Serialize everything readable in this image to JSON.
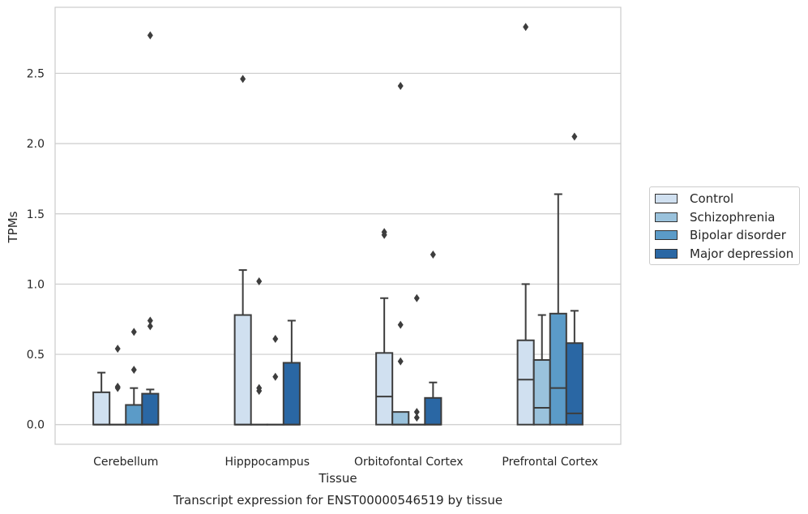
{
  "chart_data": {
    "type": "boxplot",
    "xlabel": "Tissue",
    "ylabel": "TPMs",
    "caption": "Transcript expression for ENST00000546519 by tissue",
    "ylim": [
      -0.14,
      2.97
    ],
    "yticks": [
      0.0,
      0.5,
      1.0,
      1.5,
      2.0,
      2.5
    ],
    "ytick_labels": [
      "0.0",
      "0.5",
      "1.0",
      "1.5",
      "2.0",
      "2.5"
    ],
    "grid": "horizontal",
    "legend_position": "right",
    "categories": [
      "Cerebellum",
      "Hipppocampus",
      "Orbitofontal Cortex",
      "Prefrontal Cortex"
    ],
    "series": [
      {
        "name": "Control",
        "color": "#d0e0f0",
        "boxes": [
          {
            "q1": 0.0,
            "median": 0.0,
            "q3": 0.23,
            "whisker_low": 0.0,
            "whisker_high": 0.37,
            "outliers": []
          },
          {
            "q1": 0.0,
            "median": 0.0,
            "q3": 0.78,
            "whisker_low": 0.0,
            "whisker_high": 1.1,
            "outliers": [
              2.46
            ]
          },
          {
            "q1": 0.0,
            "median": 0.2,
            "q3": 0.51,
            "whisker_low": 0.0,
            "whisker_high": 0.9,
            "outliers": [
              1.35,
              1.37
            ]
          },
          {
            "q1": 0.0,
            "median": 0.32,
            "q3": 0.6,
            "whisker_low": 0.0,
            "whisker_high": 1.0,
            "outliers": [
              2.83
            ]
          }
        ]
      },
      {
        "name": "Schizophrenia",
        "color": "#9ac2dc",
        "boxes": [
          {
            "q1": 0.0,
            "median": 0.0,
            "q3": 0.0,
            "whisker_low": 0.0,
            "whisker_high": 0.0,
            "outliers": [
              0.26,
              0.27,
              0.54
            ]
          },
          {
            "q1": 0.0,
            "median": 0.0,
            "q3": 0.0,
            "whisker_low": 0.0,
            "whisker_high": 0.0,
            "outliers": [
              0.24,
              0.26,
              1.02
            ]
          },
          {
            "q1": 0.0,
            "median": 0.0,
            "q3": 0.09,
            "whisker_low": 0.0,
            "whisker_high": 0.09,
            "outliers": [
              0.45,
              0.71,
              2.41
            ]
          },
          {
            "q1": 0.0,
            "median": 0.12,
            "q3": 0.46,
            "whisker_low": 0.0,
            "whisker_high": 0.78,
            "outliers": []
          }
        ]
      },
      {
        "name": "Bipolar disorder",
        "color": "#5b9bc8",
        "boxes": [
          {
            "q1": 0.0,
            "median": 0.0,
            "q3": 0.14,
            "whisker_low": 0.0,
            "whisker_high": 0.26,
            "outliers": [
              0.39,
              0.66
            ]
          },
          {
            "q1": 0.0,
            "median": 0.0,
            "q3": 0.0,
            "whisker_low": 0.0,
            "whisker_high": 0.0,
            "outliers": [
              0.34,
              0.61
            ]
          },
          {
            "q1": 0.0,
            "median": 0.0,
            "q3": 0.0,
            "whisker_low": 0.0,
            "whisker_high": 0.0,
            "outliers": [
              0.05,
              0.09,
              0.9
            ]
          },
          {
            "q1": 0.0,
            "median": 0.26,
            "q3": 0.79,
            "whisker_low": 0.0,
            "whisker_high": 1.64,
            "outliers": []
          }
        ]
      },
      {
        "name": "Major depression",
        "color": "#2a67a4",
        "boxes": [
          {
            "q1": 0.0,
            "median": 0.0,
            "q3": 0.22,
            "whisker_low": 0.0,
            "whisker_high": 0.25,
            "outliers": [
              0.7,
              0.74,
              2.77
            ]
          },
          {
            "q1": 0.0,
            "median": 0.0,
            "q3": 0.44,
            "whisker_low": 0.0,
            "whisker_high": 0.74,
            "outliers": []
          },
          {
            "q1": 0.0,
            "median": 0.0,
            "q3": 0.19,
            "whisker_low": 0.0,
            "whisker_high": 0.3,
            "outliers": [
              1.21
            ]
          },
          {
            "q1": 0.0,
            "median": 0.08,
            "q3": 0.58,
            "whisker_low": 0.0,
            "whisker_high": 0.81,
            "outliers": [
              2.05
            ]
          }
        ]
      }
    ]
  }
}
